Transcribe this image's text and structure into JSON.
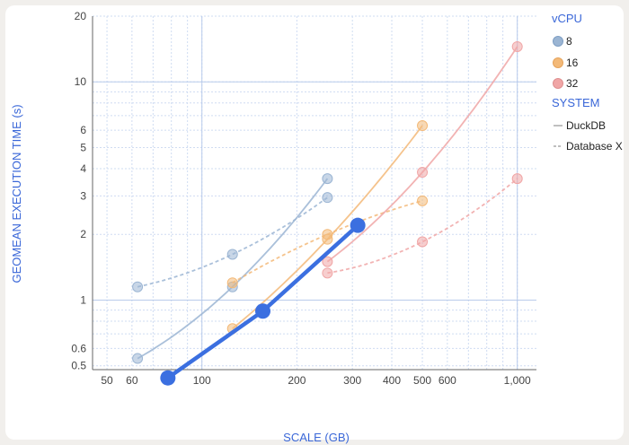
{
  "chart_data": {
    "type": "scatter",
    "xlabel": "SCALE (GB)",
    "ylabel": "GEOMEAN EXECUTION TIME (s)",
    "xscale": "log",
    "yscale": "log",
    "xlim": [
      45,
      1150
    ],
    "ylim": [
      0.48,
      20
    ],
    "x_ticks": [
      50,
      60,
      100,
      200,
      300,
      400,
      500,
      600,
      1000
    ],
    "x_tick_labels": [
      "50",
      "60",
      "100",
      "200",
      "300",
      "400",
      "500",
      "600",
      "1,000"
    ],
    "y_ticks": [
      0.5,
      0.6,
      1,
      2,
      3,
      4,
      5,
      6,
      10,
      20
    ],
    "y_tick_labels": [
      "0.5",
      "0.6",
      "1",
      "2",
      "3",
      "4",
      "5",
      "6",
      "10",
      "20"
    ],
    "grid": true,
    "legend_position": "right",
    "legend": {
      "vcpu_title": "vCPU",
      "vcpu_items": [
        {
          "label": "8",
          "color": "#9bb5d3"
        },
        {
          "label": "16",
          "color": "#f3b978"
        },
        {
          "label": "32",
          "color": "#f0a6a6"
        }
      ],
      "system_title": "SYSTEM",
      "system_items": [
        {
          "label": "DuckDB",
          "dash": "solid"
        },
        {
          "label": "Database X",
          "dash": "dashed"
        }
      ]
    },
    "series": [
      {
        "vcpu": "8",
        "system": "DuckDB",
        "color": "#9bb5d3",
        "dash": "solid",
        "x": [
          62.5,
          125,
          250
        ],
        "y": [
          0.54,
          1.15,
          3.6
        ]
      },
      {
        "vcpu": "8",
        "system": "Database X",
        "color": "#9bb5d3",
        "dash": "dashed",
        "x": [
          62.5,
          125,
          250
        ],
        "y": [
          1.15,
          1.62,
          2.95
        ]
      },
      {
        "vcpu": "16",
        "system": "DuckDB",
        "color": "#f3b978",
        "dash": "solid",
        "x": [
          125,
          250,
          500
        ],
        "y": [
          0.74,
          1.9,
          6.3
        ]
      },
      {
        "vcpu": "16",
        "system": "Database X",
        "color": "#f3b978",
        "dash": "dashed",
        "x": [
          125,
          250,
          500
        ],
        "y": [
          1.2,
          2.0,
          2.85
        ]
      },
      {
        "vcpu": "32",
        "system": "DuckDB",
        "color": "#f0a6a6",
        "dash": "solid",
        "x": [
          250,
          500,
          1000
        ],
        "y": [
          1.5,
          3.85,
          14.5
        ]
      },
      {
        "vcpu": "32",
        "system": "Database X",
        "color": "#f0a6a6",
        "dash": "dashed",
        "x": [
          250,
          500,
          1000
        ],
        "y": [
          1.33,
          1.85,
          3.6
        ]
      }
    ],
    "highlight_series": {
      "color": "#3b6fe0",
      "x": [
        78,
        156,
        312
      ],
      "y": [
        0.44,
        0.89,
        2.2
      ]
    }
  }
}
